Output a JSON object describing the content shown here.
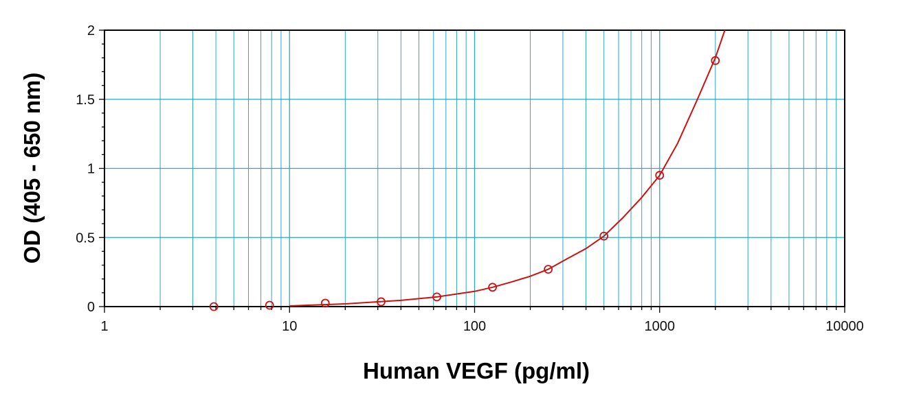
{
  "chart_data": {
    "type": "scatter",
    "xlabel": "Human VEGF (pg/ml)",
    "ylabel": "OD (405 - 650 nm)",
    "xscale": "log",
    "xlim": [
      1,
      10000
    ],
    "ylim": [
      0,
      2
    ],
    "xticks": [
      "1",
      "10",
      "100",
      "1000",
      "10000"
    ],
    "yticks": [
      "0",
      "0.5",
      "1",
      "1.5",
      "2"
    ],
    "grid": true,
    "colors": {
      "grid": "#2aa6c9",
      "series": "#cc1111",
      "axis": "#000000"
    },
    "series": [
      {
        "marker": "circle",
        "x": [
          3.9,
          7.8,
          15.6,
          31.25,
          62.5,
          125,
          250,
          500,
          1000,
          2000
        ],
        "y": [
          0.0,
          0.01,
          0.025,
          0.035,
          0.07,
          0.14,
          0.27,
          0.51,
          0.95,
          1.78
        ]
      }
    ],
    "fit_curve": {
      "type": "4PL",
      "x": [
        10,
        20,
        40,
        62.5,
        100,
        125,
        160,
        200,
        250,
        320,
        400,
        500,
        630,
        800,
        1000,
        1250,
        1600,
        2000,
        2250
      ],
      "y": [
        0.005,
        0.02,
        0.045,
        0.07,
        0.11,
        0.14,
        0.18,
        0.22,
        0.27,
        0.35,
        0.42,
        0.51,
        0.64,
        0.79,
        0.95,
        1.18,
        1.5,
        1.8,
        2.0
      ]
    }
  }
}
